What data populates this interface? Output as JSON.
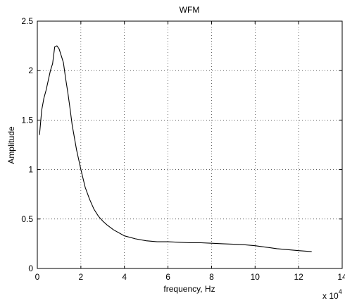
{
  "chart_data": {
    "type": "line",
    "title": "WFM",
    "xlabel": "frequency, Hz",
    "ylabel": "Amplitude",
    "x_multiplier": "x 10",
    "x_multiplier_exponent": "4",
    "xlim": [
      0,
      14
    ],
    "ylim": [
      0,
      2.5
    ],
    "xticks": [
      "0",
      "2",
      "4",
      "6",
      "8",
      "10",
      "12",
      "14"
    ],
    "yticks": [
      "0",
      "0.5",
      "1",
      "1.5",
      "2",
      "2.5"
    ],
    "grid": true,
    "line_color": "#000000",
    "series": [
      {
        "x": [
          0.1,
          0.2,
          0.3,
          0.4,
          0.5,
          0.6,
          0.7,
          0.8,
          0.9,
          1.0,
          1.1,
          1.2,
          1.3,
          1.4,
          1.5,
          1.6,
          1.8,
          2.0,
          2.2,
          2.4,
          2.6,
          2.8,
          3.0,
          3.2,
          3.5,
          4.0,
          4.5,
          5.0,
          5.5,
          6.0,
          6.5,
          7.0,
          7.5,
          8.0,
          8.5,
          9.0,
          9.5,
          10.0,
          10.5,
          11.0,
          11.5,
          12.0,
          12.6
        ],
        "y": [
          1.35,
          1.6,
          1.72,
          1.8,
          1.9,
          2.0,
          2.07,
          2.24,
          2.25,
          2.22,
          2.15,
          2.08,
          1.92,
          1.78,
          1.62,
          1.45,
          1.2,
          1.0,
          0.82,
          0.7,
          0.6,
          0.53,
          0.48,
          0.44,
          0.39,
          0.33,
          0.3,
          0.28,
          0.27,
          0.27,
          0.265,
          0.26,
          0.26,
          0.255,
          0.25,
          0.245,
          0.24,
          0.23,
          0.215,
          0.2,
          0.19,
          0.18,
          0.17
        ]
      }
    ]
  }
}
